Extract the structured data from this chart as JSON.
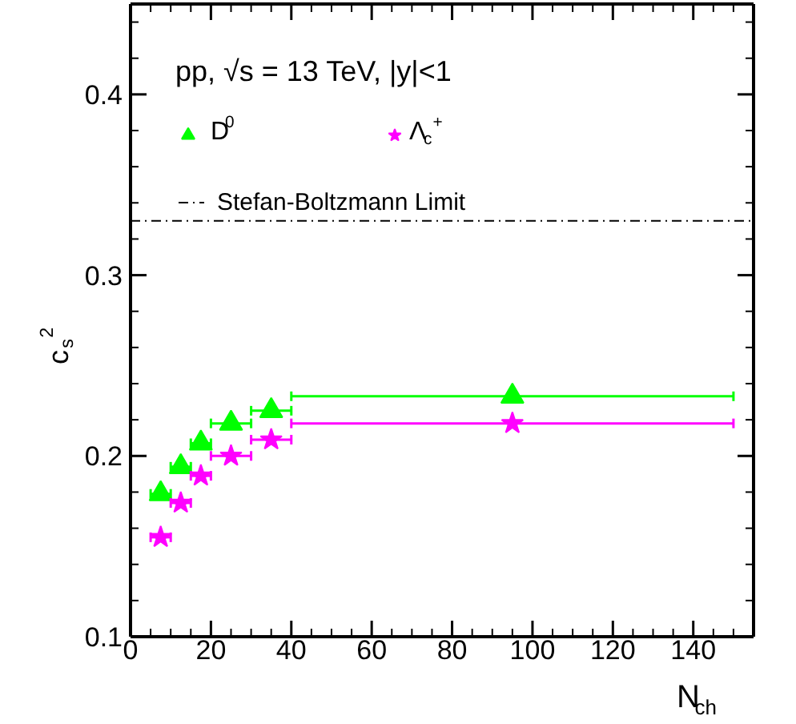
{
  "chart_data": {
    "type": "scatter",
    "xlabel": "N$_{ch}$",
    "ylabel": "c$_{s}$$^{2}$",
    "x": [
      7.5,
      12.5,
      17.5,
      25,
      35,
      95
    ],
    "series": [
      {
        "name": "D$^{0}$",
        "color": "#00ff00",
        "marker": "triangle",
        "values": [
          0.179,
          0.194,
          0.207,
          0.218,
          0.225,
          0.233
        ],
        "xerrors": [
          2.5,
          2.5,
          2.5,
          5,
          5,
          55
        ]
      },
      {
        "name": "Λ$_{c}$$^{+}$",
        "color": "#ff00ff",
        "marker": "star",
        "values": [
          0.155,
          0.174,
          0.189,
          0.2,
          0.209,
          0.218
        ],
        "xerrors": [
          2.5,
          2.5,
          2.5,
          5,
          5,
          55
        ]
      }
    ],
    "xlim": [
      0,
      155
    ],
    "ylim": [
      0.1,
      0.45
    ],
    "xticks": [
      0,
      20,
      40,
      60,
      80,
      100,
      120,
      140
    ],
    "yticks": [
      {
        "value": 0.1,
        "label": "0.1"
      },
      {
        "value": 0.2,
        "label": "0.2"
      },
      {
        "value": 0.3,
        "label": "0.3"
      },
      {
        "value": 0.4,
        "label": "0.4"
      }
    ],
    "ref_lines": [
      {
        "axis": "y",
        "value": 0.33,
        "label": "Stefan-Boltzmann Limit",
        "color": "#000000",
        "line_style": "dashdot"
      }
    ],
    "annotations": [
      "pp, √s = 13 TeV, |y|<1"
    ],
    "legend": "top left",
    "grid": false
  }
}
